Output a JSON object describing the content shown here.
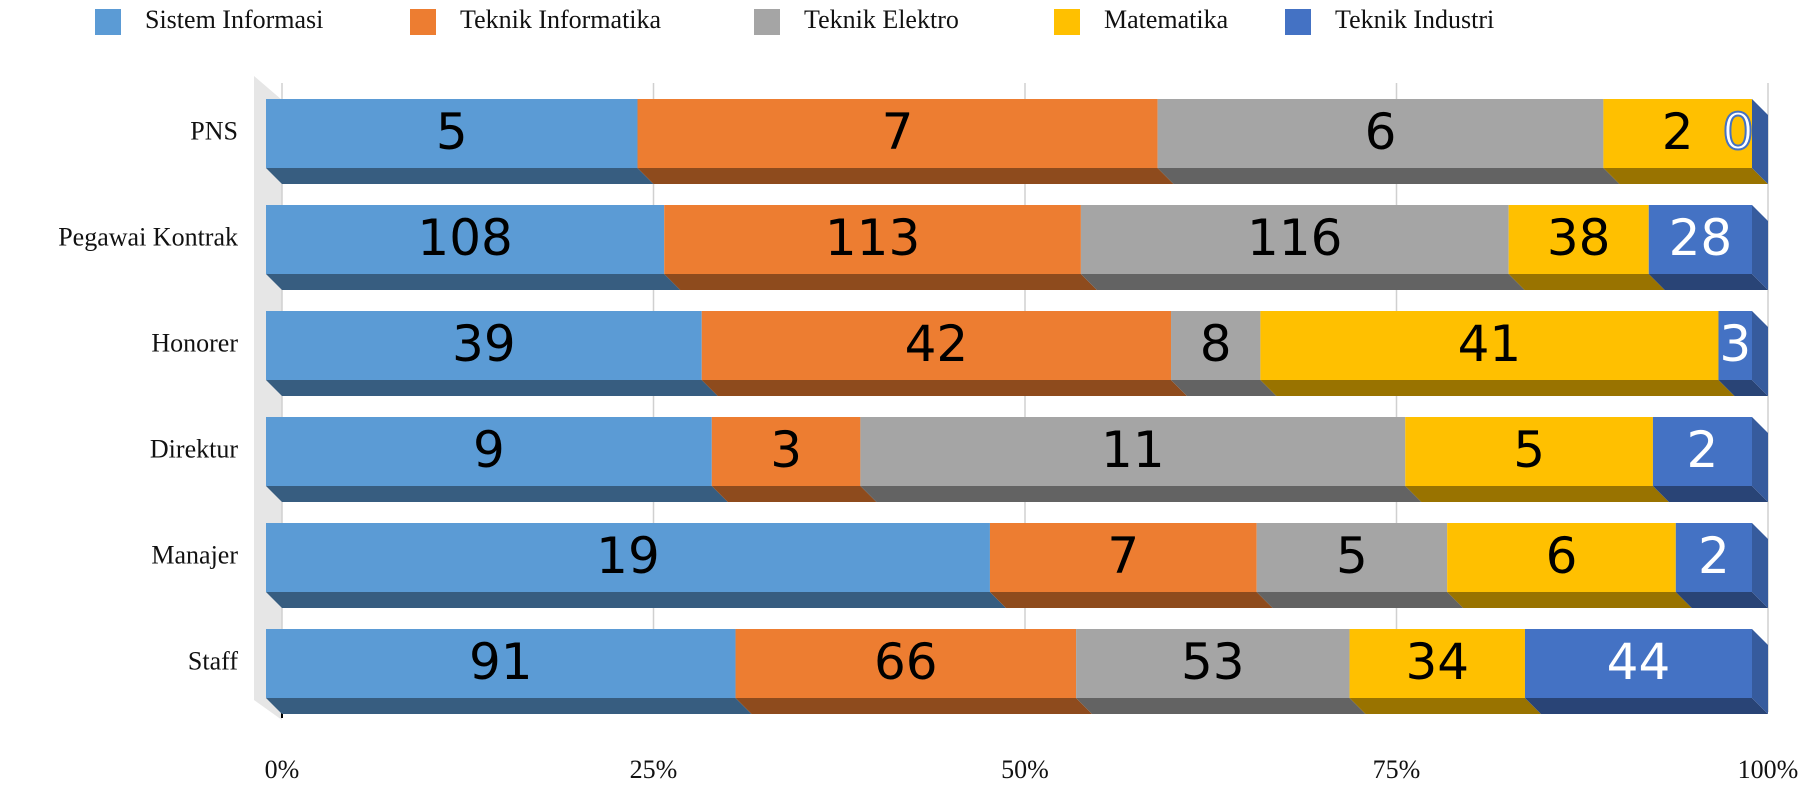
{
  "chart_data": {
    "type": "bar",
    "orientation": "horizontal",
    "stacked": "percent",
    "categories": [
      "PNS",
      "Pegawai Kontrak",
      "Honorer",
      "Direktur",
      "Manajer",
      "Staff"
    ],
    "series": [
      {
        "name": "Sistem Informasi",
        "color": "#5b9bd5",
        "values": [
          5,
          108,
          39,
          9,
          19,
          91
        ]
      },
      {
        "name": "Teknik Informatika",
        "color": "#ed7d31",
        "values": [
          7,
          113,
          42,
          3,
          7,
          66
        ]
      },
      {
        "name": "Teknik Elektro",
        "color": "#a5a5a5",
        "values": [
          6,
          116,
          8,
          11,
          5,
          53
        ]
      },
      {
        "name": "Matematika",
        "color": "#ffc000",
        "values": [
          2,
          38,
          41,
          5,
          6,
          34
        ]
      },
      {
        "name": "Teknik Industri",
        "color": "#4472c4",
        "values": [
          0,
          28,
          3,
          2,
          2,
          44
        ]
      }
    ],
    "xlim": [
      0,
      100
    ],
    "xticks": [
      {
        "value": 0,
        "label": "0%"
      },
      {
        "value": 25,
        "label": "25%"
      },
      {
        "value": 50,
        "label": "50%"
      },
      {
        "value": 75,
        "label": "75%"
      },
      {
        "value": 100,
        "label": "100%"
      }
    ],
    "grid": true,
    "legend": "top"
  }
}
